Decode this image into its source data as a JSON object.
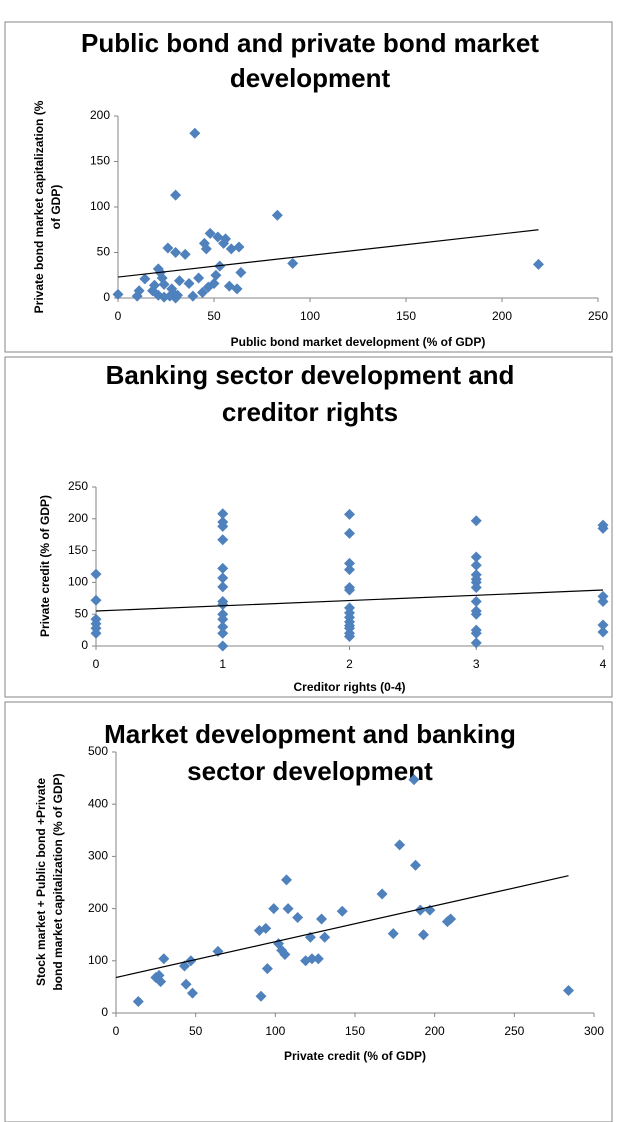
{
  "chart_data": [
    {
      "type": "scatter",
      "title": [
        "Public bond and private bond market",
        "development"
      ],
      "xlabel": "Public bond market development (% of GDP)",
      "ylabel": [
        "Private bond market capitalization (%",
        "of GDP)"
      ],
      "color": "#4f81bd",
      "xlim": [
        0,
        250
      ],
      "xticks": [
        0,
        50,
        100,
        150,
        200,
        250
      ],
      "ylim": [
        0,
        200
      ],
      "yticks": [
        0,
        50,
        100,
        150,
        200
      ],
      "x": [
        0,
        10,
        11,
        14,
        18,
        19,
        21,
        21,
        22,
        23,
        24,
        24,
        26,
        27,
        28,
        29,
        30,
        30,
        30,
        31,
        32,
        35,
        37,
        39,
        40,
        42,
        44,
        45,
        46,
        47,
        48,
        50,
        51,
        52,
        53,
        55,
        56,
        58,
        59,
        62,
        63,
        64,
        83,
        91,
        219
      ],
      "values": [
        4,
        2,
        8,
        21,
        8,
        14,
        3,
        32,
        28,
        22,
        15,
        1,
        55,
        2,
        10,
        5,
        0,
        50,
        113,
        3,
        19,
        48,
        16,
        2,
        181,
        22,
        6,
        60,
        54,
        12,
        71,
        16,
        25,
        67,
        35,
        60,
        65,
        13,
        54,
        10,
        56,
        28,
        91,
        38,
        37
      ],
      "trend": {
        "x": [
          0,
          219
        ],
        "values": [
          23,
          75
        ]
      }
    },
    {
      "type": "scatter",
      "title": [
        "Banking sector development and",
        "creditor rights"
      ],
      "xlabel": "Creditor rights (0-4)",
      "ylabel": [
        "Private credit (% of GDP)"
      ],
      "color": "#4f81bd",
      "xlim": [
        0,
        4
      ],
      "xticks": [
        0,
        1,
        2,
        3,
        4
      ],
      "ylim": [
        0,
        250
      ],
      "yticks": [
        0,
        50,
        100,
        150,
        200,
        250
      ],
      "x": [
        0,
        0,
        0,
        0,
        0,
        0,
        1,
        1,
        1,
        1,
        1,
        1,
        1,
        1,
        1,
        1,
        1,
        1,
        1,
        1,
        2,
        2,
        2,
        2,
        2,
        2,
        2,
        2,
        2,
        2,
        2,
        2,
        2,
        2,
        3,
        3,
        3,
        3,
        3,
        3,
        3,
        3,
        3,
        3,
        3,
        3,
        3,
        4,
        4,
        4,
        4,
        4,
        4
      ],
      "values": [
        113,
        72,
        42,
        35,
        28,
        20,
        208,
        195,
        188,
        167,
        122,
        107,
        93,
        70,
        65,
        50,
        42,
        30,
        20,
        0,
        207,
        177,
        130,
        120,
        92,
        88,
        60,
        52,
        45,
        38,
        32,
        28,
        20,
        15,
        197,
        140,
        127,
        112,
        105,
        100,
        92,
        70,
        55,
        50,
        25,
        20,
        5,
        190,
        185,
        78,
        70,
        33,
        22
      ],
      "trend": {
        "x": [
          0,
          4
        ],
        "values": [
          55,
          88
        ]
      }
    },
    {
      "type": "scatter",
      "title": [
        "Market development and banking",
        "sector development"
      ],
      "xlabel": "Private credit (% of GDP)",
      "ylabel": [
        "Stock market + Public bond +Private",
        "bond market capitalization  (% of GDP)"
      ],
      "color": "#4f81bd",
      "xlim": [
        0,
        300
      ],
      "xticks": [
        0,
        50,
        100,
        150,
        200,
        250,
        300
      ],
      "ylim": [
        0,
        500
      ],
      "yticks": [
        0,
        100,
        200,
        300,
        400,
        500
      ],
      "x": [
        14,
        25,
        27,
        28,
        30,
        43,
        44,
        47,
        48,
        64,
        90,
        91,
        94,
        95,
        99,
        102,
        104,
        106,
        107,
        108,
        114,
        119,
        122,
        123,
        127,
        129,
        131,
        142,
        167,
        174,
        178,
        187,
        188,
        191,
        193,
        197,
        208,
        210,
        284
      ],
      "values": [
        22,
        68,
        72,
        60,
        104,
        90,
        55,
        100,
        38,
        118,
        158,
        32,
        162,
        85,
        200,
        133,
        120,
        112,
        255,
        200,
        183,
        100,
        145,
        104,
        104,
        180,
        145,
        195,
        228,
        152,
        322,
        447,
        283,
        197,
        150,
        197,
        175,
        180,
        43
      ],
      "trend": {
        "x": [
          0,
          284
        ],
        "values": [
          68,
          263
        ]
      }
    }
  ]
}
